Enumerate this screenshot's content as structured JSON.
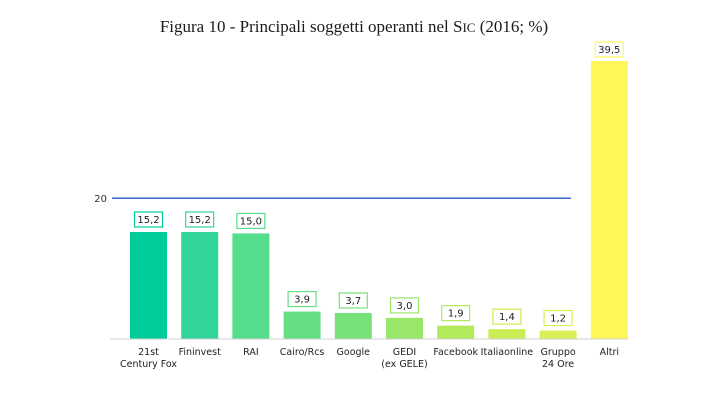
{
  "chart_data": {
    "type": "bar",
    "title": "Figura 10 - Principali soggetti operanti nel SIC (2016; %)",
    "xlabel": "",
    "ylabel": "",
    "ylim": [
      0,
      39.5
    ],
    "grid": false,
    "legend": "none",
    "categories": [
      [
        "21st",
        "Century Fox"
      ],
      [
        "Fininvest"
      ],
      [
        "RAI"
      ],
      [
        "Cairo/Rcs"
      ],
      [
        "Google"
      ],
      [
        "GEDI",
        "(ex GELE)"
      ],
      [
        "Facebook"
      ],
      [
        "Italiaonline"
      ],
      [
        "Gruppo",
        "24 Ore"
      ],
      [
        "Altri"
      ]
    ],
    "values": [
      15.2,
      15.2,
      15.0,
      3.9,
      3.7,
      3.0,
      1.9,
      1.4,
      1.2,
      39.5
    ],
    "value_labels": [
      "15,2",
      "15,2",
      "15,0",
      "3,9",
      "3,7",
      "3,0",
      "1,9",
      "1,4",
      "1,2",
      "39,5"
    ],
    "bar_colors": [
      "#00cc99",
      "#33d69a",
      "#55dd8c",
      "#66de82",
      "#77e27a",
      "#99e66b",
      "#b3ea5c",
      "#c8ed55",
      "#daef55",
      "#fff75a"
    ],
    "reference_line": {
      "value": 20,
      "label": "20",
      "color": "#3a6bc4"
    }
  }
}
